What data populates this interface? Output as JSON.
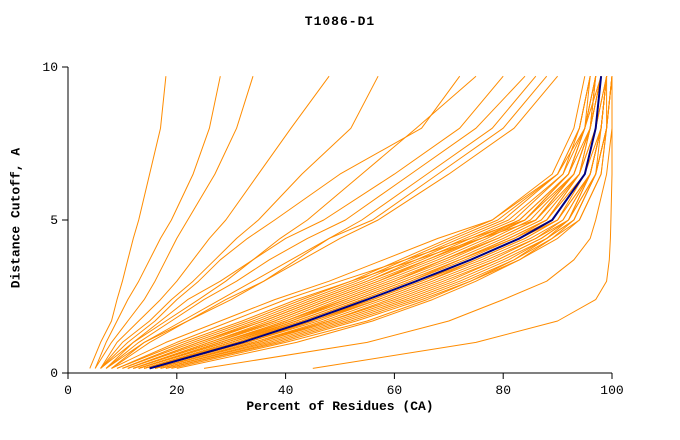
{
  "colors": {
    "model_lines": "#ff8c00",
    "highlight_line": "#000080",
    "text": "#000000",
    "axis": "#000000"
  },
  "chart_data": {
    "type": "line",
    "title": "T1086-D1",
    "xlabel": "Percent of Residues (CA)",
    "ylabel": "Distance Cutoff, A",
    "xlim": [
      0,
      100
    ],
    "ylim": [
      0,
      10
    ],
    "x_ticks": [
      0,
      20,
      40,
      60,
      80,
      100
    ],
    "y_ticks": [
      0,
      5,
      10
    ],
    "grid": false,
    "legend": "none",
    "cutoffs": [
      0.15,
      1,
      1.7,
      2.4,
      3,
      3.7,
      4.4,
      5,
      6.5,
      8,
      9.7
    ],
    "highlight_percents": [
      15,
      32,
      44,
      55,
      64,
      74,
      83,
      89,
      95,
      97,
      98
    ],
    "series": [
      [
        4,
        6,
        8,
        9,
        10,
        11,
        12,
        13,
        15,
        17,
        18
      ],
      [
        5,
        7,
        9,
        11,
        13,
        15,
        17,
        19,
        23,
        26,
        28
      ],
      [
        5,
        8,
        11,
        14,
        16,
        18,
        20,
        22,
        27,
        31,
        34
      ],
      [
        6,
        9,
        13,
        17,
        20,
        23,
        26,
        29,
        35,
        41,
        48
      ],
      [
        6,
        10,
        15,
        19,
        23,
        27,
        31,
        35,
        43,
        52,
        57
      ],
      [
        7,
        12,
        18,
        24,
        29,
        34,
        39,
        44,
        54,
        64,
        75
      ],
      [
        8,
        14,
        22,
        30,
        36,
        42,
        48,
        54,
        66,
        78,
        86
      ],
      [
        6,
        11,
        16,
        20,
        24,
        28,
        33,
        38,
        50,
        65,
        72
      ],
      [
        7,
        13,
        19,
        25,
        31,
        37,
        44,
        51,
        63,
        75,
        84
      ],
      [
        8,
        15,
        22,
        29,
        36,
        43,
        50,
        57,
        70,
        82,
        90
      ],
      [
        6,
        12,
        17,
        22,
        28,
        34,
        40,
        47,
        60,
        72,
        80
      ],
      [
        7,
        14,
        21,
        28,
        34,
        41,
        48,
        56,
        68,
        80,
        88
      ],
      [
        15,
        33,
        46,
        57,
        66,
        76,
        85,
        91,
        96,
        98,
        99
      ],
      [
        14,
        30,
        42,
        53,
        62,
        72,
        81,
        88,
        94,
        96,
        97
      ],
      [
        13,
        28,
        40,
        50,
        59,
        69,
        78,
        85,
        93,
        96,
        98
      ],
      [
        16,
        35,
        48,
        60,
        69,
        79,
        87,
        92,
        97,
        99,
        100
      ],
      [
        12,
        26,
        38,
        48,
        57,
        66,
        75,
        83,
        92,
        95,
        97
      ],
      [
        17,
        36,
        50,
        62,
        71,
        80,
        88,
        93,
        97,
        99,
        99
      ],
      [
        11,
        24,
        35,
        45,
        54,
        63,
        72,
        80,
        90,
        94,
        96
      ],
      [
        15,
        31,
        44,
        55,
        64,
        74,
        83,
        89,
        95,
        97,
        98
      ],
      [
        13,
        29,
        41,
        52,
        61,
        71,
        80,
        87,
        94,
        97,
        99
      ],
      [
        18,
        38,
        52,
        64,
        73,
        82,
        89,
        94,
        98,
        99,
        100
      ],
      [
        10,
        22,
        33,
        43,
        52,
        61,
        70,
        78,
        89,
        93,
        95
      ],
      [
        14,
        32,
        45,
        56,
        65,
        75,
        84,
        90,
        96,
        98,
        99
      ],
      [
        12,
        27,
        39,
        49,
        58,
        68,
        77,
        84,
        93,
        96,
        97
      ],
      [
        16,
        34,
        47,
        58,
        67,
        77,
        86,
        91,
        96,
        98,
        99
      ],
      [
        11,
        25,
        36,
        46,
        55,
        65,
        74,
        82,
        91,
        95,
        97
      ],
      [
        15,
        33,
        45,
        57,
        66,
        75,
        84,
        90,
        95,
        98,
        99
      ],
      [
        13,
        28,
        41,
        51,
        60,
        70,
        79,
        86,
        94,
        96,
        98
      ],
      [
        17,
        37,
        51,
        63,
        72,
        81,
        88,
        93,
        97,
        99,
        100
      ],
      [
        12,
        26,
        37,
        47,
        56,
        66,
        76,
        83,
        92,
        95,
        96
      ],
      [
        14,
        31,
        43,
        54,
        63,
        73,
        82,
        89,
        95,
        97,
        98
      ],
      [
        10,
        23,
        34,
        44,
        53,
        62,
        71,
        79,
        90,
        94,
        96
      ],
      [
        16,
        35,
        49,
        61,
        70,
        79,
        87,
        92,
        97,
        98,
        99
      ],
      [
        13,
        29,
        42,
        53,
        62,
        72,
        81,
        88,
        94,
        97,
        98
      ],
      [
        15,
        32,
        44,
        56,
        65,
        74,
        83,
        90,
        96,
        98,
        99
      ],
      [
        11,
        24,
        36,
        46,
        55,
        64,
        73,
        81,
        91,
        94,
        96
      ],
      [
        18,
        39,
        53,
        65,
        74,
        83,
        90,
        94,
        98,
        99,
        100
      ],
      [
        12,
        27,
        38,
        48,
        57,
        67,
        76,
        84,
        92,
        96,
        97
      ],
      [
        14,
        30,
        43,
        54,
        63,
        72,
        82,
        88,
        95,
        97,
        99
      ],
      [
        16,
        34,
        48,
        59,
        68,
        78,
        86,
        92,
        96,
        98,
        99
      ],
      [
        13,
        28,
        40,
        51,
        60,
        69,
        79,
        86,
        93,
        96,
        98
      ],
      [
        9,
        20,
        30,
        40,
        50,
        62,
        74,
        84,
        92,
        95,
        97
      ],
      [
        19,
        40,
        55,
        66,
        74,
        82,
        88,
        92,
        96,
        98,
        99
      ],
      [
        8,
        18,
        28,
        38,
        48,
        58,
        68,
        78,
        90,
        95,
        98
      ],
      [
        20,
        42,
        56,
        67,
        75,
        83,
        89,
        93,
        97,
        99,
        100
      ],
      [
        9,
        21,
        32,
        42,
        52,
        64,
        76,
        86,
        93,
        96,
        98
      ],
      [
        25,
        55,
        70,
        80,
        88,
        93,
        96,
        97,
        99,
        100,
        100
      ],
      [
        45,
        75,
        90,
        97,
        99,
        99.5,
        99.7,
        99.8,
        100,
        100,
        100
      ]
    ]
  }
}
